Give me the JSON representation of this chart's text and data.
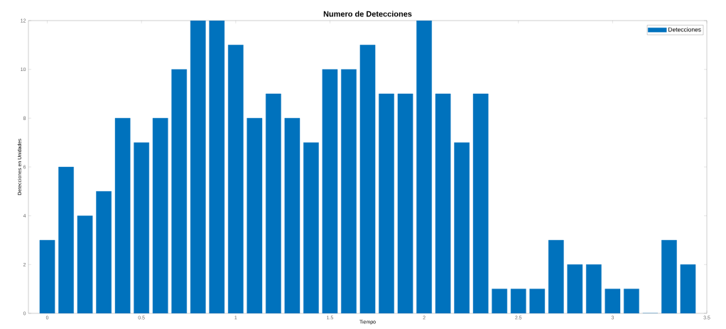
{
  "chart_data": {
    "type": "bar",
    "title": "Numero de Detecciones",
    "xlabel": "Tiempo",
    "ylabel": "Detecciones en Unidades",
    "x": [
      0,
      0.1,
      0.2,
      0.3,
      0.4,
      0.5,
      0.6,
      0.7,
      0.8,
      0.9,
      1.0,
      1.1,
      1.2,
      1.3,
      1.4,
      1.5,
      1.6,
      1.7,
      1.8,
      1.9,
      2.0,
      2.1,
      2.2,
      2.3,
      2.4,
      2.5,
      2.6,
      2.7,
      2.8,
      2.9,
      3.0,
      3.1,
      3.2,
      3.3,
      3.4
    ],
    "series": [
      {
        "name": "Detecciones",
        "color": "#0072bd",
        "values": [
          3,
          6,
          4,
          5,
          8,
          7,
          8,
          10,
          12,
          12,
          11,
          8,
          9,
          8,
          7,
          10,
          10,
          11,
          9,
          9,
          12,
          9,
          7,
          9,
          1,
          1,
          1,
          3,
          2,
          2,
          1,
          1,
          0,
          3,
          2
        ]
      }
    ],
    "xlim": [
      -0.1,
      3.5
    ],
    "ylim": [
      0,
      12
    ],
    "xticks": [
      0,
      0.5,
      1,
      1.5,
      2,
      2.5,
      3,
      3.5
    ],
    "yticks": [
      0,
      2,
      4,
      6,
      8,
      10,
      12
    ],
    "grid": false,
    "legend": "top right"
  }
}
